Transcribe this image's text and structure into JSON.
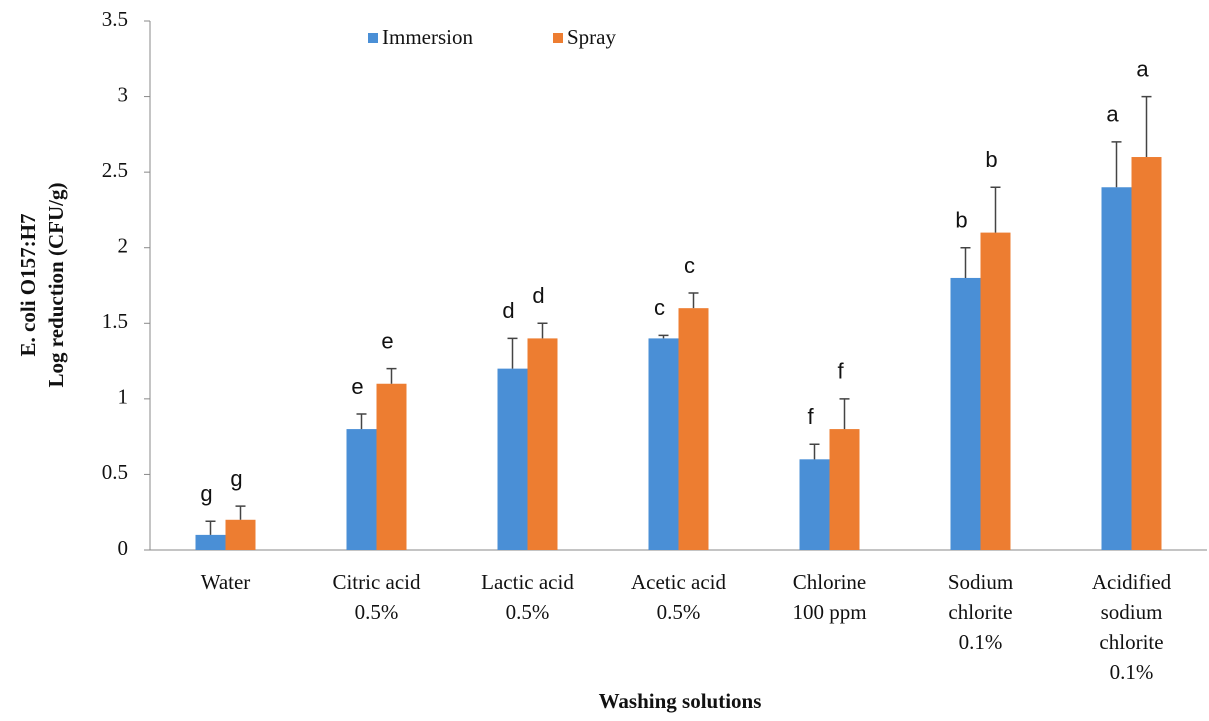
{
  "chart_data": {
    "type": "bar",
    "x_label": "Washing solutions",
    "y_label": [
      "E. coli O157:H7",
      "Log reduction  (CFU/g)"
    ],
    "categories": [
      [
        "Water"
      ],
      [
        "Citric acid",
        "0.5%"
      ],
      [
        "Lactic acid",
        "0.5%"
      ],
      [
        "Acetic acid",
        "0.5%"
      ],
      [
        "Chlorine",
        "100 ppm"
      ],
      [
        "Sodium",
        "chlorite",
        "0.1%"
      ],
      [
        "Acidified",
        "sodium",
        "chlorite",
        "0.1%"
      ]
    ],
    "series": [
      {
        "name": "Immersion",
        "color": "#4a8fd6",
        "values": [
          0.1,
          0.8,
          1.2,
          1.4,
          0.6,
          1.8,
          2.4
        ],
        "errors": [
          0.09,
          0.1,
          0.2,
          0.02,
          0.1,
          0.2,
          0.3
        ],
        "letters": [
          "g",
          "e",
          "d",
          "c",
          "f",
          "b",
          "a"
        ]
      },
      {
        "name": "Spray",
        "color": "#ed7d31",
        "values": [
          0.2,
          1.1,
          1.4,
          1.6,
          0.8,
          2.1,
          2.6
        ],
        "errors": [
          0.09,
          0.1,
          0.1,
          0.1,
          0.2,
          0.3,
          0.4
        ],
        "letters": [
          "g",
          "e",
          "d",
          "c",
          "f",
          "b",
          "a"
        ]
      }
    ],
    "ylim": [
      0,
      3.5
    ],
    "yticks": [
      0,
      0.5,
      1,
      1.5,
      2,
      2.5,
      3,
      3.5
    ],
    "grid": false,
    "legend": "top"
  }
}
